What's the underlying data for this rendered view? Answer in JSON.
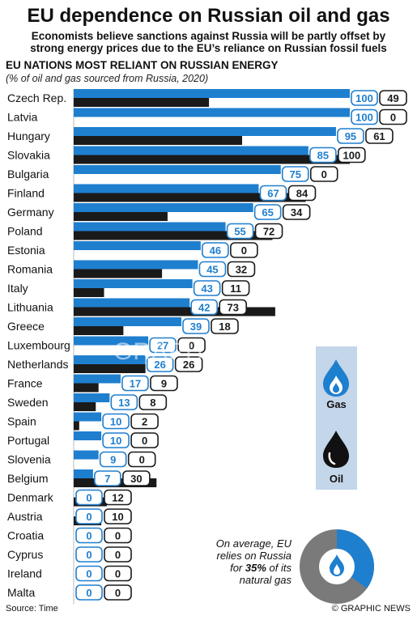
{
  "header": {
    "title": "EU dependence on Russian oil and gas",
    "subtitle_line1": "Economists believe sanctions against Russia will be partly offset by",
    "subtitle_line2": "strong energy prices due to the EU’s reliance on Russian fossil fuels",
    "section_heading": "EU NATIONS MOST RELIANT ON RUSSIAN ENERGY",
    "note": "(% of oil and gas sourced from Russia, 2020)"
  },
  "legend": {
    "gas_label": "Gas",
    "oil_label": "Oil",
    "gas_icon": "flame-drop-icon",
    "oil_icon": "oil-drop-icon"
  },
  "average": {
    "line1": "On average, EU",
    "line2": "relies on Russia",
    "line3_prefix": "for ",
    "line3_value": "35%",
    "line3_suffix": " of its",
    "line4": "natural gas",
    "share": 35
  },
  "footer": {
    "source": "Source: Time",
    "credit": "© GRAPHIC NEWS"
  },
  "watermark": "GRAPHIC NEWS",
  "colors": {
    "gas": "#1f7fcf",
    "oil": "#1a1a1a",
    "legend_bg": "#c4d6ea",
    "donut_rest": "#7a7a7a"
  },
  "chart_data": {
    "type": "bar",
    "orientation": "horizontal",
    "xlim": [
      0,
      100
    ],
    "categories": [
      "Czech Rep.",
      "Latvia",
      "Hungary",
      "Slovakia",
      "Bulgaria",
      "Finland",
      "Germany",
      "Poland",
      "Estonia",
      "Romania",
      "Italy",
      "Lithuania",
      "Greece",
      "Luxembourg",
      "Netherlands",
      "France",
      "Sweden",
      "Spain",
      "Portugal",
      "Slovenia",
      "Belgium",
      "Denmark",
      "Austria",
      "Croatia",
      "Cyprus",
      "Ireland",
      "Malta"
    ],
    "series": [
      {
        "name": "Gas",
        "values": [
          100,
          100,
          95,
          85,
          75,
          67,
          65,
          55,
          46,
          45,
          43,
          42,
          39,
          27,
          26,
          17,
          13,
          10,
          10,
          9,
          7,
          0,
          0,
          0,
          0,
          0,
          0
        ]
      },
      {
        "name": "Oil",
        "values": [
          49,
          0,
          61,
          100,
          0,
          84,
          34,
          72,
          0,
          32,
          11,
          73,
          18,
          0,
          26,
          9,
          8,
          2,
          0,
          0,
          30,
          12,
          10,
          0,
          0,
          0,
          0
        ]
      }
    ]
  }
}
